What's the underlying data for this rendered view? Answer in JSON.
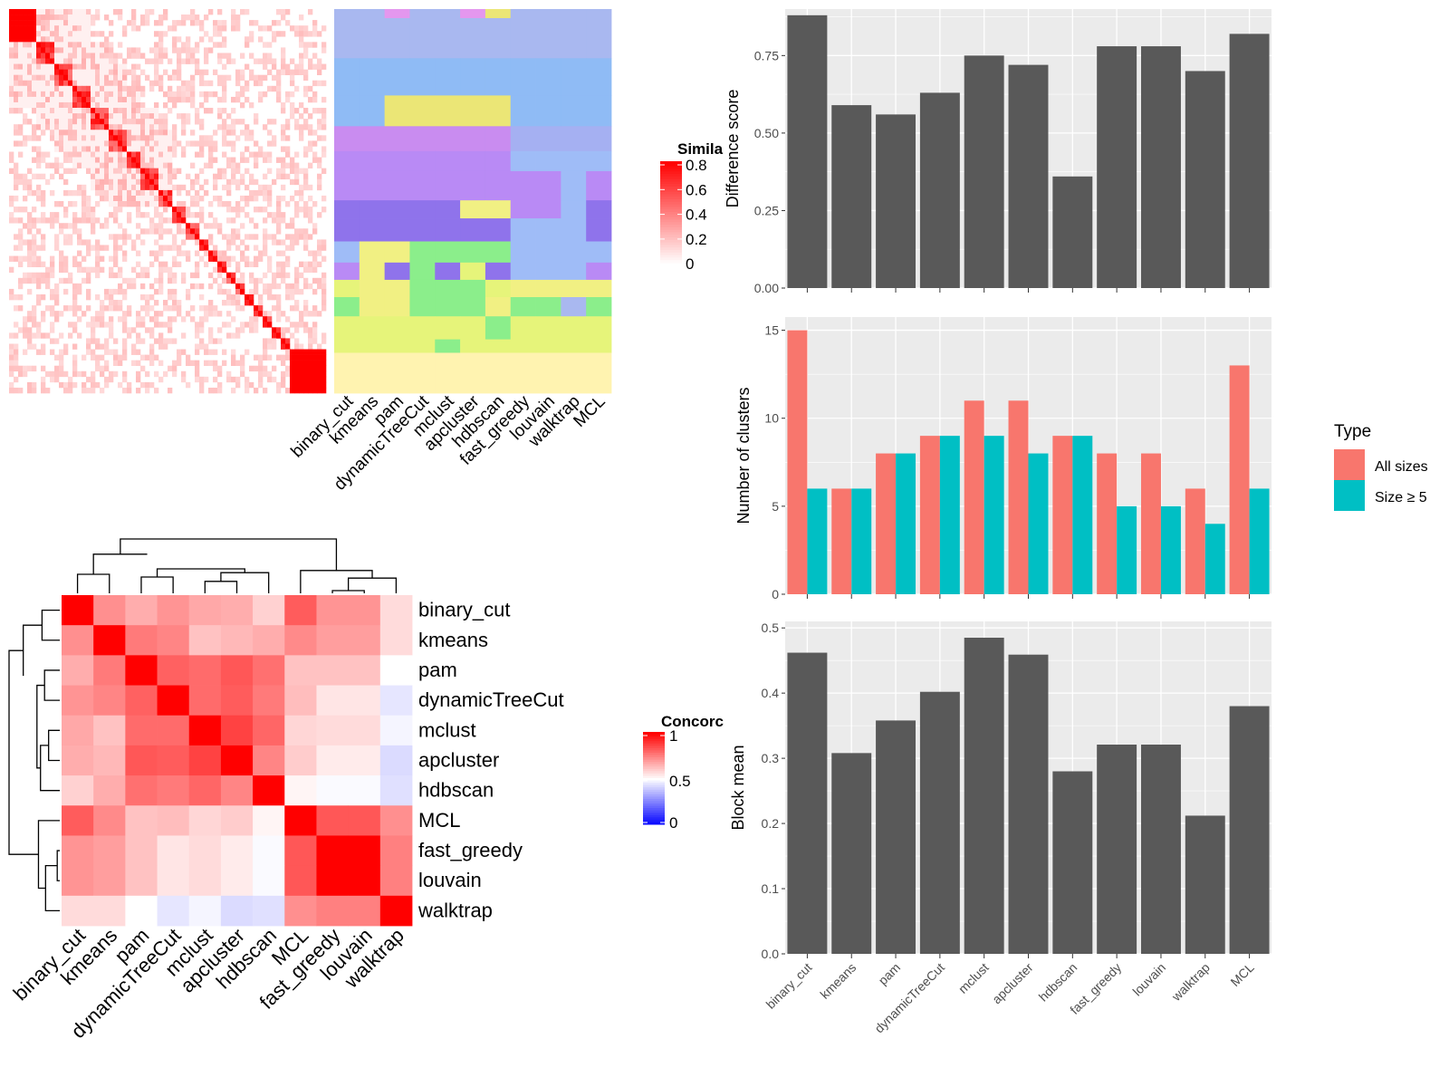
{
  "methods": [
    "binary_cut",
    "kmeans",
    "pam",
    "dynamicTreeCut",
    "mclust",
    "apcluster",
    "hdbscan",
    "fast_greedy",
    "louvain",
    "walktrap",
    "MCL"
  ],
  "matrix_methods": [
    "binary_cut",
    "kmeans",
    "pam",
    "dynamicTreeCut",
    "mclust",
    "apcluster",
    "hdbscan",
    "MCL",
    "fast_greedy",
    "louvain",
    "walktrap"
  ],
  "similarity_legend": {
    "title": "Simila",
    "ticks": [
      "0.8",
      "0.6",
      "0.4",
      "0.2",
      "0"
    ]
  },
  "concordance_legend": {
    "title": "Concorc",
    "ticks": [
      "1",
      "0.5",
      "0"
    ]
  },
  "type_legend": {
    "title": "Type",
    "items": [
      "All sizes",
      "Size ≥ 5"
    ]
  },
  "colors": {
    "bar_dark": "#595959",
    "all_sizes": "#F8766D",
    "size_ge5": "#00BFC4",
    "panel_bg": "#EBEBEB",
    "heat_high": "#FF0000",
    "heat_low": "#0000FF"
  },
  "chart_data": [
    {
      "type": "heatmap",
      "name": "similarity matrix",
      "legend_title": "Simila",
      "value_range": [
        0,
        0.8
      ],
      "diagonal_blocks": 22
    },
    {
      "type": "heatmap",
      "name": "cluster labels per method",
      "columns": [
        "binary_cut",
        "kmeans",
        "pam",
        "dynamicTreeCut",
        "mclust",
        "apcluster",
        "hdbscan",
        "fast_greedy",
        "louvain",
        "walktrap",
        "MCL"
      ]
    },
    {
      "type": "heatmap",
      "name": "concordance",
      "legend_title": "Concorc",
      "rows": [
        "binary_cut",
        "kmeans",
        "pam",
        "dynamicTreeCut",
        "mclust",
        "apcluster",
        "hdbscan",
        "MCL",
        "fast_greedy",
        "louvain",
        "walktrap"
      ],
      "columns": [
        "binary_cut",
        "kmeans",
        "pam",
        "dynamicTreeCut",
        "mclust",
        "apcluster",
        "hdbscan",
        "MCL",
        "fast_greedy",
        "louvain",
        "walktrap"
      ],
      "values": [
        [
          1.0,
          0.72,
          0.66,
          0.71,
          0.67,
          0.66,
          0.59,
          0.82,
          0.71,
          0.71,
          0.57
        ],
        [
          0.72,
          1.0,
          0.76,
          0.74,
          0.62,
          0.64,
          0.66,
          0.73,
          0.69,
          0.69,
          0.57
        ],
        [
          0.66,
          0.76,
          1.0,
          0.81,
          0.79,
          0.83,
          0.78,
          0.62,
          0.62,
          0.62,
          0.5
        ],
        [
          0.71,
          0.74,
          0.81,
          1.0,
          0.79,
          0.82,
          0.76,
          0.63,
          0.55,
          0.55,
          0.45
        ],
        [
          0.67,
          0.62,
          0.79,
          0.79,
          1.0,
          0.87,
          0.8,
          0.58,
          0.57,
          0.57,
          0.48
        ],
        [
          0.66,
          0.64,
          0.83,
          0.82,
          0.87,
          1.0,
          0.74,
          0.6,
          0.54,
          0.54,
          0.43
        ],
        [
          0.59,
          0.66,
          0.78,
          0.76,
          0.8,
          0.74,
          1.0,
          0.52,
          0.49,
          0.49,
          0.44
        ],
        [
          0.82,
          0.73,
          0.62,
          0.63,
          0.58,
          0.6,
          0.52,
          1.0,
          0.83,
          0.83,
          0.72
        ],
        [
          0.71,
          0.69,
          0.62,
          0.55,
          0.57,
          0.54,
          0.49,
          0.83,
          1.0,
          1.0,
          0.75
        ],
        [
          0.71,
          0.69,
          0.62,
          0.55,
          0.57,
          0.54,
          0.49,
          0.83,
          1.0,
          1.0,
          0.75
        ],
        [
          0.57,
          0.57,
          0.5,
          0.45,
          0.48,
          0.43,
          0.44,
          0.72,
          0.75,
          0.75,
          1.0
        ]
      ]
    },
    {
      "type": "bar",
      "categories": [
        "binary_cut",
        "kmeans",
        "pam",
        "dynamicTreeCut",
        "mclust",
        "apcluster",
        "hdbscan",
        "fast_greedy",
        "louvain",
        "walktrap",
        "MCL"
      ],
      "values": [
        0.88,
        0.59,
        0.56,
        0.63,
        0.75,
        0.72,
        0.36,
        0.78,
        0.78,
        0.7,
        0.82
      ],
      "ylabel": "Difference score",
      "ylim": [
        0,
        0.9
      ],
      "yticks": [
        "0.00",
        "0.25",
        "0.50",
        "0.75"
      ],
      "ytick_values": [
        0,
        0.25,
        0.5,
        0.75
      ]
    },
    {
      "type": "bar",
      "categories": [
        "binary_cut",
        "kmeans",
        "pam",
        "dynamicTreeCut",
        "mclust",
        "apcluster",
        "hdbscan",
        "fast_greedy",
        "louvain",
        "walktrap",
        "MCL"
      ],
      "series": [
        {
          "name": "All sizes",
          "values": [
            15,
            6,
            8,
            9,
            11,
            11,
            9,
            8,
            8,
            6,
            13
          ]
        },
        {
          "name": "Size ≥ 5",
          "values": [
            6,
            6,
            8,
            9,
            9,
            8,
            9,
            5,
            5,
            4,
            6
          ]
        }
      ],
      "ylabel": "Number of clusters",
      "ylim": [
        0,
        15.75
      ],
      "yticks": [
        "0",
        "5",
        "10",
        "15"
      ],
      "ytick_values": [
        0,
        5,
        10,
        15
      ],
      "legend": "right"
    },
    {
      "type": "bar",
      "categories": [
        "binary_cut",
        "kmeans",
        "pam",
        "dynamicTreeCut",
        "mclust",
        "apcluster",
        "hdbscan",
        "fast_greedy",
        "louvain",
        "walktrap",
        "MCL"
      ],
      "values": [
        0.462,
        0.308,
        0.358,
        0.402,
        0.485,
        0.459,
        0.28,
        0.321,
        0.321,
        0.212,
        0.38
      ],
      "ylabel": "Block mean",
      "ylim": [
        0,
        0.51
      ],
      "yticks": [
        "0.0",
        "0.1",
        "0.2",
        "0.3",
        "0.4",
        "0.5"
      ],
      "ytick_values": [
        0,
        0.1,
        0.2,
        0.3,
        0.4,
        0.5
      ]
    }
  ]
}
